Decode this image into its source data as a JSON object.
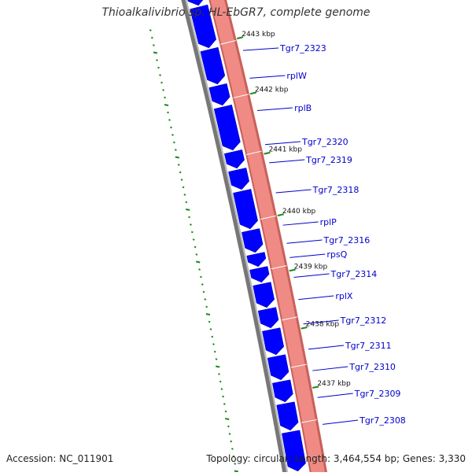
{
  "title": "Thioalkalivibrio sp. HL-EbGR7, complete genome",
  "accession_text": "Accession: NC_011901",
  "topology_text": "Topology: circular; Length: 3,464,554 bp; Genes: 3,330",
  "colors": {
    "gene_forward": "#0000ff",
    "gene_reverse": "#ef8a84",
    "backbone": "#777777",
    "gc_skew": "#1a8a1a",
    "label": "#0000cc",
    "tick_label": "#111111"
  },
  "scale_ticks": [
    {
      "label": "2443 kbp"
    },
    {
      "label": "2442 kbp"
    },
    {
      "label": "2441 kbp"
    },
    {
      "label": "2440 kbp"
    },
    {
      "label": "2439 kbp"
    },
    {
      "label": "2438 kbp"
    },
    {
      "label": "2437 kbp"
    }
  ],
  "gene_labels": [
    {
      "name": "Tgr7_2323"
    },
    {
      "name": "rplW"
    },
    {
      "name": "rplB"
    },
    {
      "name": "Tgr7_2320"
    },
    {
      "name": "Tgr7_2319"
    },
    {
      "name": "Tgr7_2318"
    },
    {
      "name": "rplP"
    },
    {
      "name": "Tgr7_2316"
    },
    {
      "name": "rpsQ"
    },
    {
      "name": "Tgr7_2314"
    },
    {
      "name": "rplX"
    },
    {
      "name": "Tgr7_2312"
    },
    {
      "name": "Tgr7_2311"
    },
    {
      "name": "Tgr7_2310"
    },
    {
      "name": "Tgr7_2309"
    },
    {
      "name": "Tgr7_2308"
    }
  ]
}
